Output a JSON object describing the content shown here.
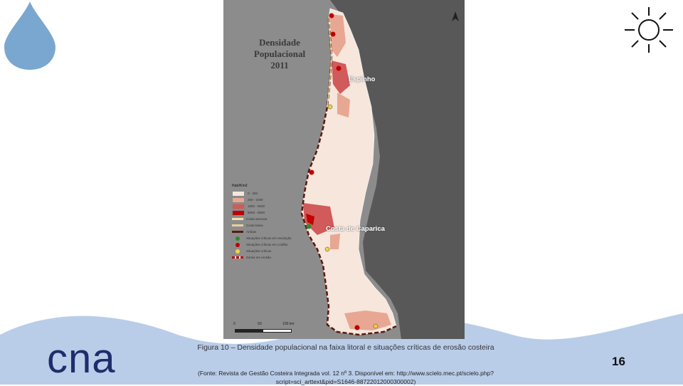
{
  "slide": {
    "brand": "cna",
    "page_number": "16",
    "caption": "Figura 10 – Densidade populacional na faixa litoral e situações críticas de erosão costeira",
    "source": "(Fonte: Revista de Gestão Costeira Integrada vol. 12 nº 3. Disponível em: http://www.scielo.mec.pt/scielo.php?script=sci_arttext&pid=S1646-88722012000300002)"
  },
  "map": {
    "title_line1": "Densidade Populacional",
    "title_line2": "2011",
    "label_espinho": "Espinho",
    "label_caparica": "Costa de Caparica",
    "north": "N",
    "legend_title": "Hab/Km2",
    "legend_items": [
      "0 - 250",
      "250 - 1000",
      "1000 - 5000",
      "5000 - 6500",
      "Costa arenosa",
      "Costa baixa",
      "Arribas",
      "Situações críticas em resolução",
      "Situações críticas em conflito",
      "Situações críticas",
      "Zonas em erosão"
    ],
    "scale_labels": [
      "0",
      "50",
      "100 km"
    ]
  },
  "colors": {
    "wave": "#b9cde9",
    "drop": "#7aa7cf",
    "density_low": "#f6e6dc",
    "density_mid": "#e8a792",
    "density_high": "#d15a5a",
    "density_max": "#c00000",
    "land_spain": "#585858",
    "sea": "#8c8c8c",
    "brand": "#1e2d6b"
  },
  "icons": [
    "water-drop-icon",
    "sun-icon",
    "north-arrow-icon"
  ]
}
